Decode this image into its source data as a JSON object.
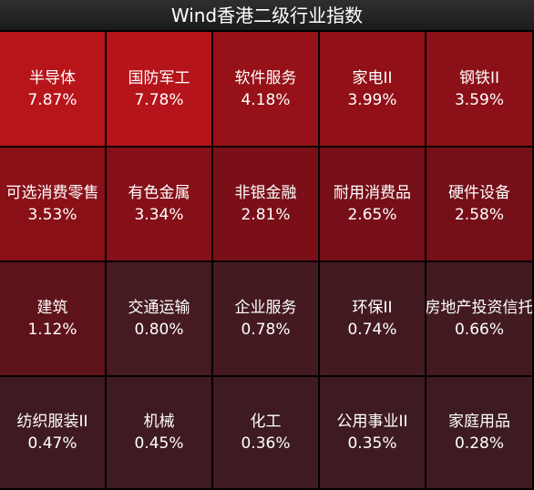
{
  "header": {
    "title": "Wind香港二级行业指数"
  },
  "tiles": [
    {
      "name": "半导体",
      "pct": "7.87%",
      "color": "#b8151b"
    },
    {
      "name": "国防军工",
      "pct": "7.78%",
      "color": "#b5141a"
    },
    {
      "name": "软件服务",
      "pct": "4.18%",
      "color": "#961118"
    },
    {
      "name": "家电II",
      "pct": "3.99%",
      "color": "#921118"
    },
    {
      "name": "钢铁II",
      "pct": "3.59%",
      "color": "#8c1018"
    },
    {
      "name": "可选消费零售",
      "pct": "3.53%",
      "color": "#8a1018"
    },
    {
      "name": "有色金属",
      "pct": "3.34%",
      "color": "#861018"
    },
    {
      "name": "非银金融",
      "pct": "2.81%",
      "color": "#7a0f18"
    },
    {
      "name": "耐用消费品",
      "pct": "2.65%",
      "color": "#770f18"
    },
    {
      "name": "硬件设备",
      "pct": "2.58%",
      "color": "#750f18"
    },
    {
      "name": "建筑",
      "pct": "1.12%",
      "color": "#5e1219"
    },
    {
      "name": "交通运输",
      "pct": "0.80%",
      "color": "#451a20"
    },
    {
      "name": "企业服务",
      "pct": "0.78%",
      "color": "#441a20"
    },
    {
      "name": "环保II",
      "pct": "0.74%",
      "color": "#431a20"
    },
    {
      "name": "房地产投资信托",
      "pct": "0.66%",
      "color": "#421a20"
    },
    {
      "name": "纺织服装II",
      "pct": "0.47%",
      "color": "#3f1b21"
    },
    {
      "name": "机械",
      "pct": "0.45%",
      "color": "#3f1b21"
    },
    {
      "name": "化工",
      "pct": "0.36%",
      "color": "#3e1b21"
    },
    {
      "name": "公用事业II",
      "pct": "0.35%",
      "color": "#3e1b21"
    },
    {
      "name": "家庭用品",
      "pct": "0.28%",
      "color": "#3d1b21"
    }
  ]
}
